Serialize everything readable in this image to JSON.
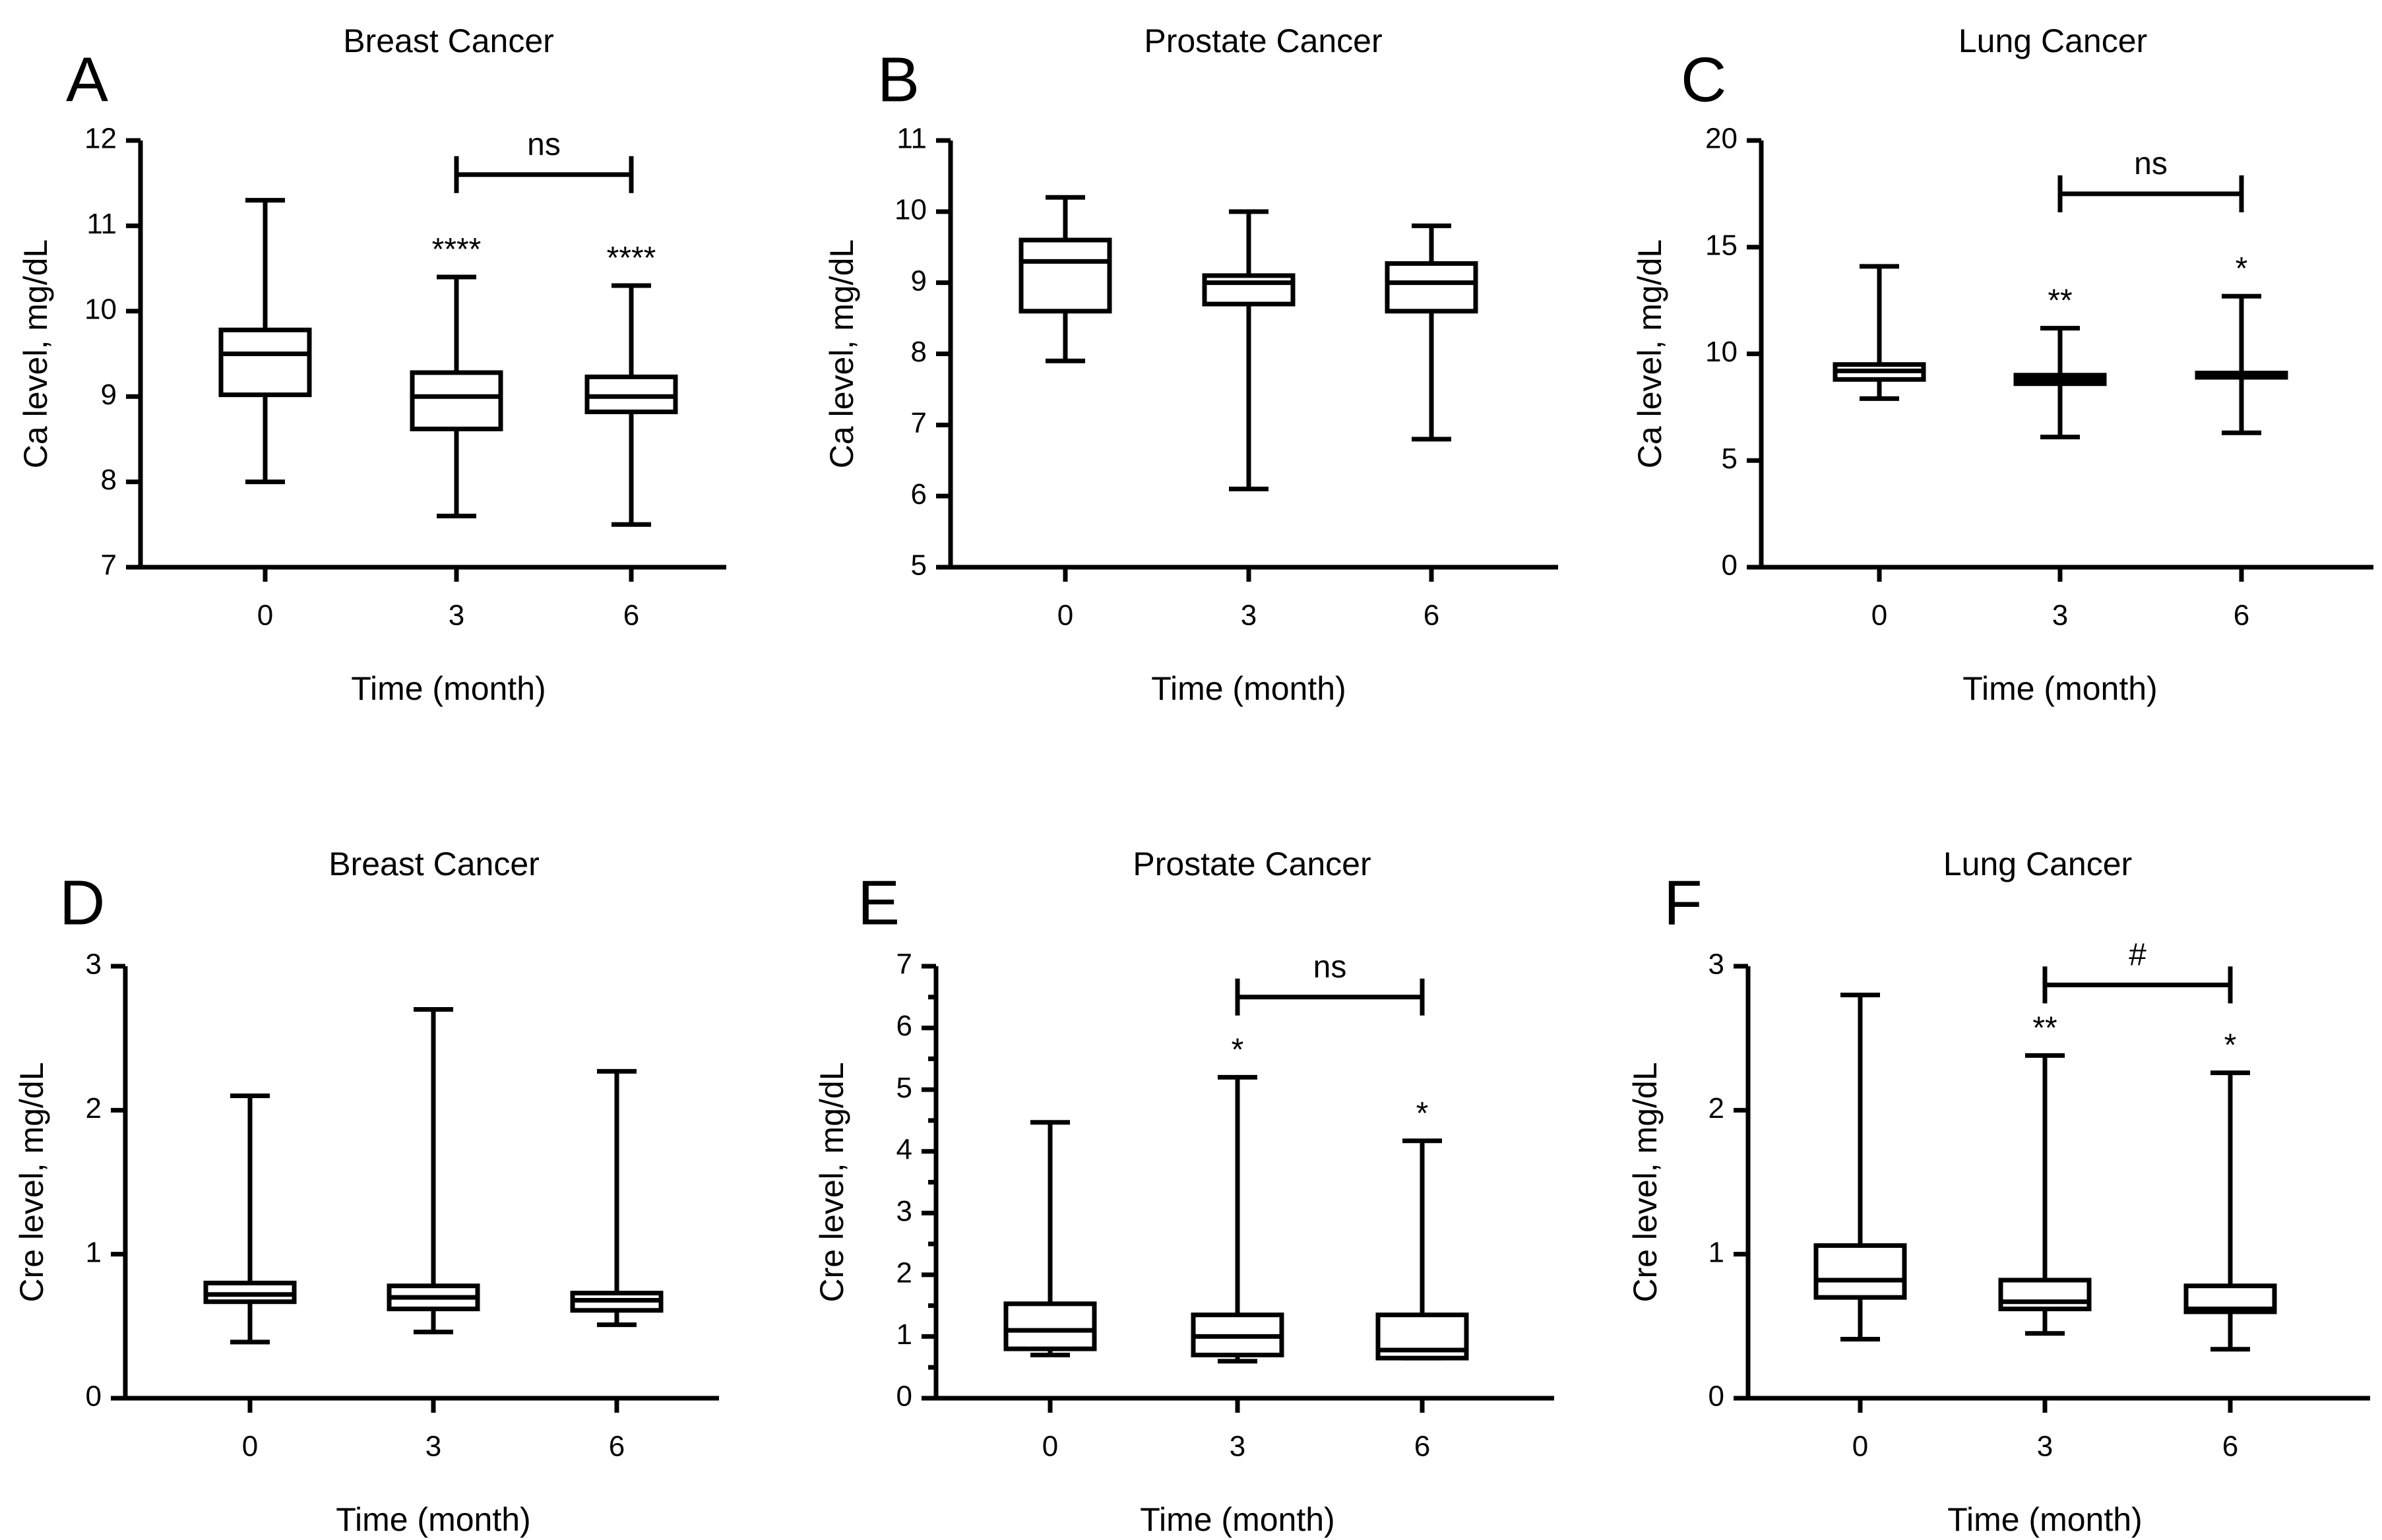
{
  "figure": {
    "type": "box-plot grid",
    "rows": 2,
    "cols": 3
  },
  "chart_data": [
    {
      "type": "box",
      "panel": "A",
      "title": "Breast Cancer",
      "xlabel": "Time (month)",
      "ylabel": "Ca level, mg/dL",
      "ylim": [
        7,
        12
      ],
      "yticks": [
        7,
        8,
        9,
        10,
        11,
        12
      ],
      "ytick_labels": [
        "7",
        "8",
        "9",
        "10",
        "11",
        "12"
      ],
      "minor_ticks": 0,
      "categories": [
        "0",
        "3",
        "6"
      ],
      "boxes": [
        {
          "min": 8.0,
          "q1": 9.02,
          "median": 9.5,
          "q3": 9.78,
          "max": 11.3,
          "sig": ""
        },
        {
          "min": 7.6,
          "q1": 8.62,
          "median": 9.0,
          "q3": 9.28,
          "max": 10.4,
          "sig": "****"
        },
        {
          "min": 7.5,
          "q1": 8.82,
          "median": 9.0,
          "q3": 9.23,
          "max": 10.3,
          "sig": "****"
        }
      ],
      "brackets": [
        {
          "from": 1,
          "to": 2,
          "y": 11.6,
          "label": "ns"
        }
      ]
    },
    {
      "type": "box",
      "panel": "B",
      "title": "Prostate Cancer",
      "xlabel": "Time (month)",
      "ylabel": "Ca level, mg/dL",
      "ylim": [
        5,
        11
      ],
      "yticks": [
        5,
        6,
        7,
        8,
        9,
        10,
        11
      ],
      "ytick_labels": [
        "5",
        "6",
        "7",
        "8",
        "9",
        "10",
        "11"
      ],
      "minor_ticks": 0,
      "categories": [
        "0",
        "3",
        "6"
      ],
      "boxes": [
        {
          "min": 7.9,
          "q1": 8.6,
          "median": 9.3,
          "q3": 9.6,
          "max": 10.2,
          "sig": ""
        },
        {
          "min": 6.1,
          "q1": 8.7,
          "median": 9.0,
          "q3": 9.1,
          "max": 10.0,
          "sig": ""
        },
        {
          "min": 6.8,
          "q1": 8.6,
          "median": 9.0,
          "q3": 9.27,
          "max": 9.8,
          "sig": ""
        }
      ],
      "brackets": []
    },
    {
      "type": "box",
      "panel": "C",
      "title": "Lung Cancer",
      "xlabel": "Time (month)",
      "ylabel": "Ca level, mg/dL",
      "ylim": [
        0,
        20
      ],
      "yticks": [
        0,
        5,
        10,
        15,
        20
      ],
      "ytick_labels": [
        "0",
        "5",
        "10",
        "15",
        "20"
      ],
      "minor_ticks": 0,
      "categories": [
        "0",
        "3",
        "6"
      ],
      "boxes": [
        {
          "min": 7.9,
          "q1": 8.8,
          "median": 9.2,
          "q3": 9.5,
          "max": 14.1,
          "sig": ""
        },
        {
          "min": 6.1,
          "q1": 8.6,
          "median": 8.8,
          "q3": 9.0,
          "max": 11.2,
          "sig": "**"
        },
        {
          "min": 6.3,
          "q1": 8.9,
          "median": 9.0,
          "q3": 9.1,
          "max": 12.7,
          "sig": "*"
        }
      ],
      "brackets": [
        {
          "from": 1,
          "to": 2,
          "y": 17.5,
          "label": "ns"
        }
      ]
    },
    {
      "type": "box",
      "panel": "D",
      "title": "Breast Cancer",
      "xlabel": "Time (month)",
      "ylabel": "Cre level, mg/dL",
      "ylim": [
        0,
        3
      ],
      "yticks": [
        0,
        1,
        2,
        3
      ],
      "ytick_labels": [
        "0",
        "1",
        "2",
        "3"
      ],
      "minor_ticks": 0,
      "categories": [
        "0",
        "3",
        "6"
      ],
      "boxes": [
        {
          "min": 0.39,
          "q1": 0.67,
          "median": 0.72,
          "q3": 0.8,
          "max": 2.1,
          "sig": ""
        },
        {
          "min": 0.46,
          "q1": 0.62,
          "median": 0.7,
          "q3": 0.78,
          "max": 2.7,
          "sig": ""
        },
        {
          "min": 0.51,
          "q1": 0.61,
          "median": 0.68,
          "q3": 0.73,
          "max": 2.27,
          "sig": ""
        }
      ],
      "brackets": []
    },
    {
      "type": "box",
      "panel": "E",
      "title": "Prostate Cancer",
      "xlabel": "Time (month)",
      "ylabel": "Cre level, mg/dL",
      "ylim": [
        0,
        7
      ],
      "yticks": [
        0,
        1,
        2,
        3,
        4,
        5,
        6,
        7
      ],
      "ytick_labels": [
        "0",
        "1",
        "2",
        "3",
        "4",
        "5",
        "6",
        "7"
      ],
      "minor_ticks": 1,
      "categories": [
        "0",
        "3",
        "6"
      ],
      "boxes": [
        {
          "min": 0.7,
          "q1": 0.8,
          "median": 1.1,
          "q3": 1.53,
          "max": 4.47,
          "sig": ""
        },
        {
          "min": 0.6,
          "q1": 0.7,
          "median": 1.0,
          "q3": 1.35,
          "max": 5.2,
          "sig": "*"
        },
        {
          "min": 0.65,
          "q1": 0.65,
          "median": 0.78,
          "q3": 1.35,
          "max": 4.17,
          "sig": "*"
        }
      ],
      "brackets": [
        {
          "from": 1,
          "to": 2,
          "y": 6.5,
          "label": "ns"
        }
      ]
    },
    {
      "type": "box",
      "panel": "F",
      "title": "Lung Cancer",
      "xlabel": "Time (month)",
      "ylabel": "Cre level, mg/dL",
      "ylim": [
        0,
        3
      ],
      "yticks": [
        0,
        1,
        2,
        3
      ],
      "ytick_labels": [
        "0",
        "1",
        "2",
        "3"
      ],
      "minor_ticks": 0,
      "categories": [
        "0",
        "3",
        "6"
      ],
      "boxes": [
        {
          "min": 0.41,
          "q1": 0.7,
          "median": 0.82,
          "q3": 1.06,
          "max": 2.8,
          "sig": ""
        },
        {
          "min": 0.45,
          "q1": 0.62,
          "median": 0.67,
          "q3": 0.82,
          "max": 2.38,
          "sig": "**"
        },
        {
          "min": 0.34,
          "q1": 0.6,
          "median": 0.62,
          "q3": 0.78,
          "max": 2.26,
          "sig": "*"
        }
      ],
      "brackets": [
        {
          "from": 1,
          "to": 2,
          "y": 2.87,
          "label": "#"
        }
      ]
    }
  ]
}
